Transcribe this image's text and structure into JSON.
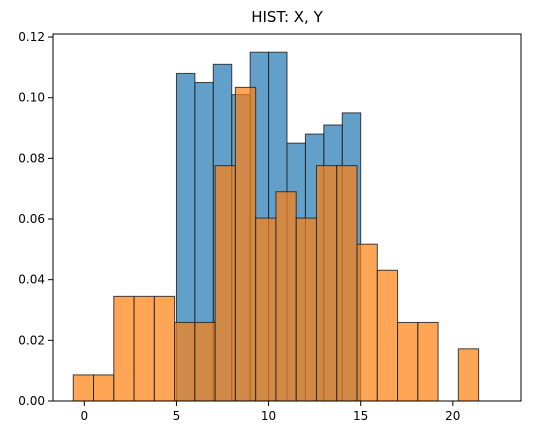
{
  "chart_data": {
    "type": "bar",
    "title": "HIST: X, Y",
    "xlabel": "",
    "ylabel": "",
    "xlim": [
      -1.7,
      23.7
    ],
    "ylim": [
      0,
      0.121
    ],
    "x_ticks": [
      0,
      5,
      10,
      15,
      20
    ],
    "y_ticks": [
      0.0,
      0.02,
      0.04,
      0.06,
      0.08,
      0.1,
      0.12
    ],
    "grid": false,
    "legend": "none",
    "series": [
      {
        "color": "#1f77b4",
        "alpha": 0.7,
        "bins": [
          {
            "x0": 5.0,
            "x1": 6.0,
            "value": 0.108
          },
          {
            "x0": 6.0,
            "x1": 7.0,
            "value": 0.105
          },
          {
            "x0": 7.0,
            "x1": 8.0,
            "value": 0.111
          },
          {
            "x0": 8.0,
            "x1": 9.0,
            "value": 0.101
          },
          {
            "x0": 9.0,
            "x1": 10.0,
            "value": 0.115
          },
          {
            "x0": 10.0,
            "x1": 11.0,
            "value": 0.115
          },
          {
            "x0": 11.0,
            "x1": 12.0,
            "value": 0.085
          },
          {
            "x0": 12.0,
            "x1": 13.0,
            "value": 0.088
          },
          {
            "x0": 13.0,
            "x1": 14.0,
            "value": 0.091
          },
          {
            "x0": 14.0,
            "x1": 15.0,
            "value": 0.095
          }
        ]
      },
      {
        "color": "#ff7f0e",
        "alpha": 0.7,
        "bins": [
          {
            "x0": -0.6,
            "x1": 0.5,
            "value": 0.0086
          },
          {
            "x0": 0.5,
            "x1": 1.6,
            "value": 0.0086
          },
          {
            "x0": 1.6,
            "x1": 2.7,
            "value": 0.0345
          },
          {
            "x0": 2.7,
            "x1": 3.8,
            "value": 0.0345
          },
          {
            "x0": 3.8,
            "x1": 4.9,
            "value": 0.0345
          },
          {
            "x0": 4.9,
            "x1": 6.0,
            "value": 0.0259
          },
          {
            "x0": 6.0,
            "x1": 7.1,
            "value": 0.0259
          },
          {
            "x0": 7.1,
            "x1": 8.2,
            "value": 0.0776
          },
          {
            "x0": 8.2,
            "x1": 9.3,
            "value": 0.1034
          },
          {
            "x0": 9.3,
            "x1": 10.4,
            "value": 0.0603
          },
          {
            "x0": 10.4,
            "x1": 11.5,
            "value": 0.069
          },
          {
            "x0": 11.5,
            "x1": 12.6,
            "value": 0.0603
          },
          {
            "x0": 12.6,
            "x1": 13.7,
            "value": 0.0776
          },
          {
            "x0": 13.7,
            "x1": 14.8,
            "value": 0.0776
          },
          {
            "x0": 14.8,
            "x1": 15.9,
            "value": 0.0517
          },
          {
            "x0": 15.9,
            "x1": 17.0,
            "value": 0.0431
          },
          {
            "x0": 17.0,
            "x1": 18.1,
            "value": 0.0259
          },
          {
            "x0": 18.1,
            "x1": 19.2,
            "value": 0.0259
          },
          {
            "x0": 19.2,
            "x1": 20.3,
            "value": 0.0
          },
          {
            "x0": 20.3,
            "x1": 21.4,
            "value": 0.0172
          },
          {
            "x0": 21.4,
            "x1": 22.5,
            "value": 0.0
          },
          {
            "x0": 22.5,
            "x1": 23.6,
            "value": 0.0
          }
        ]
      }
    ]
  }
}
